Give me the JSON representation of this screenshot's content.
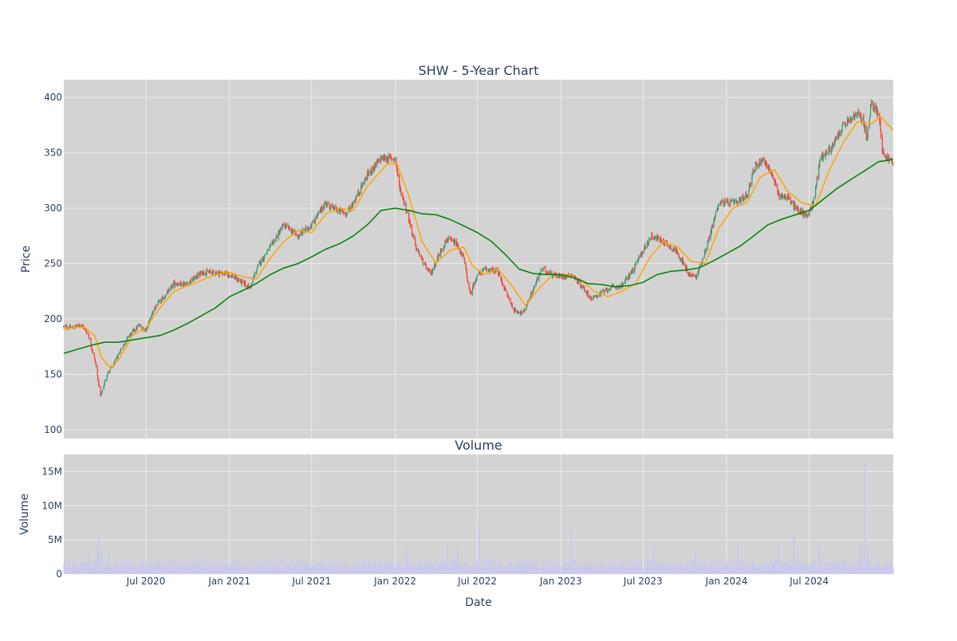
{
  "chart_data": [
    {
      "type": "candlestick",
      "title": "SHW - 5-Year Chart",
      "ylabel": "Price",
      "xlabel": "",
      "ylim": [
        92,
        416
      ],
      "xlim": [
        "2020-01-02",
        "2025-01-02"
      ],
      "x_ticks": [
        "2020-07-01",
        "2021-01-01",
        "2021-07-01",
        "2022-01-01",
        "2022-07-01",
        "2023-01-01",
        "2023-07-01",
        "2024-01-01",
        "2024-07-01"
      ],
      "x_tick_labels": [
        "Jul 2020",
        "Jan 2021",
        "Jul 2021",
        "Jan 2022",
        "Jul 2022",
        "Jan 2023",
        "Jul 2023",
        "Jan 2024",
        "Jul 2024"
      ],
      "y_ticks": [
        100,
        150,
        200,
        250,
        300,
        350,
        400
      ],
      "grid": true,
      "background_color": "#d3d3d3",
      "increasing_color": "#3d9970",
      "decreasing_color": "#ff4136",
      "close_anchors": [
        [
          "2020-01-02",
          193
        ],
        [
          "2020-01-20",
          192
        ],
        [
          "2020-02-10",
          195
        ],
        [
          "2020-02-25",
          186
        ],
        [
          "2020-03-12",
          160
        ],
        [
          "2020-03-23",
          130
        ],
        [
          "2020-04-06",
          150
        ],
        [
          "2020-04-20",
          158
        ],
        [
          "2020-05-06",
          172
        ],
        [
          "2020-05-25",
          185
        ],
        [
          "2020-06-15",
          194
        ],
        [
          "2020-07-01",
          190
        ],
        [
          "2020-07-20",
          210
        ],
        [
          "2020-08-15",
          222
        ],
        [
          "2020-09-01",
          232
        ],
        [
          "2020-10-01",
          232
        ],
        [
          "2020-11-01",
          242
        ],
        [
          "2020-12-01",
          242
        ],
        [
          "2021-01-01",
          240
        ],
        [
          "2021-01-25",
          234
        ],
        [
          "2021-02-15",
          228
        ],
        [
          "2021-03-05",
          248
        ],
        [
          "2021-04-01",
          265
        ],
        [
          "2021-05-01",
          285
        ],
        [
          "2021-06-01",
          275
        ],
        [
          "2021-07-01",
          285
        ],
        [
          "2021-08-01",
          305
        ],
        [
          "2021-08-15",
          300
        ],
        [
          "2021-09-15",
          295
        ],
        [
          "2021-10-01",
          305
        ],
        [
          "2021-11-01",
          330
        ],
        [
          "2021-12-01",
          345
        ],
        [
          "2022-01-01",
          345
        ],
        [
          "2022-01-10",
          320
        ],
        [
          "2022-01-25",
          300
        ],
        [
          "2022-02-15",
          265
        ],
        [
          "2022-03-05",
          250
        ],
        [
          "2022-03-20",
          240
        ],
        [
          "2022-04-05",
          256
        ],
        [
          "2022-04-25",
          272
        ],
        [
          "2022-05-15",
          268
        ],
        [
          "2022-06-01",
          255
        ],
        [
          "2022-06-15",
          222
        ],
        [
          "2022-07-01",
          240
        ],
        [
          "2022-07-20",
          245
        ],
        [
          "2022-08-15",
          243
        ],
        [
          "2022-09-01",
          225
        ],
        [
          "2022-09-20",
          208
        ],
        [
          "2022-10-10",
          205
        ],
        [
          "2022-10-25",
          220
        ],
        [
          "2022-11-20",
          245
        ],
        [
          "2022-12-15",
          240
        ],
        [
          "2023-01-01",
          238
        ],
        [
          "2023-01-25",
          240
        ],
        [
          "2023-02-15",
          230
        ],
        [
          "2023-03-10",
          218
        ],
        [
          "2023-03-25",
          222
        ],
        [
          "2023-04-20",
          228
        ],
        [
          "2023-05-15",
          230
        ],
        [
          "2023-06-10",
          245
        ],
        [
          "2023-07-01",
          262
        ],
        [
          "2023-07-20",
          275
        ],
        [
          "2023-08-15",
          270
        ],
        [
          "2023-09-15",
          260
        ],
        [
          "2023-10-10",
          240
        ],
        [
          "2023-10-27",
          238
        ],
        [
          "2023-11-20",
          268
        ],
        [
          "2023-12-15",
          305
        ],
        [
          "2024-01-01",
          305
        ],
        [
          "2024-01-25",
          305
        ],
        [
          "2024-02-15",
          312
        ],
        [
          "2024-03-01",
          335
        ],
        [
          "2024-03-20",
          345
        ],
        [
          "2024-04-05",
          335
        ],
        [
          "2024-04-25",
          312
        ],
        [
          "2024-05-15",
          310
        ],
        [
          "2024-06-01",
          300
        ],
        [
          "2024-06-25",
          293
        ],
        [
          "2024-07-10",
          305
        ],
        [
          "2024-07-25",
          345
        ],
        [
          "2024-08-20",
          355
        ],
        [
          "2024-09-15",
          375
        ],
        [
          "2024-10-01",
          380
        ],
        [
          "2024-10-15",
          385
        ],
        [
          "2024-10-28",
          380
        ],
        [
          "2024-11-05",
          362
        ],
        [
          "2024-11-15",
          395
        ],
        [
          "2024-12-02",
          385
        ],
        [
          "2024-12-10",
          350
        ],
        [
          "2025-01-02",
          340
        ]
      ],
      "series": [
        {
          "name": "",
          "color": "#ffa500",
          "values": [
            [
              "2020-01-02",
              191
            ],
            [
              "2020-02-15",
              193
            ],
            [
              "2020-03-10",
              185
            ],
            [
              "2020-03-25",
              165
            ],
            [
              "2020-04-15",
              155
            ],
            [
              "2020-05-05",
              165
            ],
            [
              "2020-06-01",
              185
            ],
            [
              "2020-07-01",
              192
            ],
            [
              "2020-08-01",
              210
            ],
            [
              "2020-09-01",
              225
            ],
            [
              "2020-10-01",
              230
            ],
            [
              "2020-11-01",
              235
            ],
            [
              "2020-12-01",
              240
            ],
            [
              "2021-01-01",
              242
            ],
            [
              "2021-02-01",
              238
            ],
            [
              "2021-03-01",
              236
            ],
            [
              "2021-04-01",
              255
            ],
            [
              "2021-05-01",
              270
            ],
            [
              "2021-06-01",
              280
            ],
            [
              "2021-07-01",
              278
            ],
            [
              "2021-08-01",
              295
            ],
            [
              "2021-09-01",
              300
            ],
            [
              "2021-10-01",
              298
            ],
            [
              "2021-11-01",
              320
            ],
            [
              "2021-12-15",
              340
            ],
            [
              "2022-01-05",
              340
            ],
            [
              "2022-02-01",
              310
            ],
            [
              "2022-03-01",
              270
            ],
            [
              "2022-04-01",
              250
            ],
            [
              "2022-05-01",
              262
            ],
            [
              "2022-06-01",
              265
            ],
            [
              "2022-06-20",
              248
            ],
            [
              "2022-07-15",
              240
            ],
            [
              "2022-08-15",
              245
            ],
            [
              "2022-09-15",
              230
            ],
            [
              "2022-10-15",
              212
            ],
            [
              "2022-11-15",
              228
            ],
            [
              "2022-12-15",
              240
            ],
            [
              "2023-01-15",
              240
            ],
            [
              "2023-02-15",
              235
            ],
            [
              "2023-03-15",
              225
            ],
            [
              "2023-04-15",
              220
            ],
            [
              "2023-05-15",
              225
            ],
            [
              "2023-06-15",
              232
            ],
            [
              "2023-07-15",
              255
            ],
            [
              "2023-08-15",
              270
            ],
            [
              "2023-09-15",
              265
            ],
            [
              "2023-10-15",
              252
            ],
            [
              "2023-11-15",
              250
            ],
            [
              "2023-12-15",
              282
            ],
            [
              "2024-01-15",
              300
            ],
            [
              "2024-02-15",
              305
            ],
            [
              "2024-03-15",
              328
            ],
            [
              "2024-04-15",
              335
            ],
            [
              "2024-05-15",
              315
            ],
            [
              "2024-06-15",
              305
            ],
            [
              "2024-07-15",
              302
            ],
            [
              "2024-08-15",
              335
            ],
            [
              "2024-09-15",
              360
            ],
            [
              "2024-10-15",
              378
            ],
            [
              "2024-11-15",
              376
            ],
            [
              "2024-12-05",
              383
            ],
            [
              "2025-01-02",
              370
            ]
          ]
        },
        {
          "name": "",
          "color": "#008000",
          "values": [
            [
              "2020-01-02",
              169
            ],
            [
              "2020-03-01",
              176
            ],
            [
              "2020-04-01",
              179
            ],
            [
              "2020-05-01",
              179
            ],
            [
              "2020-06-01",
              181
            ],
            [
              "2020-07-01",
              183
            ],
            [
              "2020-08-01",
              185
            ],
            [
              "2020-09-01",
              190
            ],
            [
              "2020-10-01",
              196
            ],
            [
              "2020-11-01",
              203
            ],
            [
              "2020-12-01",
              210
            ],
            [
              "2021-01-01",
              220
            ],
            [
              "2021-02-01",
              226
            ],
            [
              "2021-03-01",
              232
            ],
            [
              "2021-04-01",
              240
            ],
            [
              "2021-05-01",
              246
            ],
            [
              "2021-06-01",
              250
            ],
            [
              "2021-07-01",
              256
            ],
            [
              "2021-08-01",
              263
            ],
            [
              "2021-09-01",
              268
            ],
            [
              "2021-10-01",
              275
            ],
            [
              "2021-11-01",
              285
            ],
            [
              "2021-12-01",
              298
            ],
            [
              "2022-01-01",
              300
            ],
            [
              "2022-02-01",
              298
            ],
            [
              "2022-03-01",
              295
            ],
            [
              "2022-04-01",
              294
            ],
            [
              "2022-05-01",
              290
            ],
            [
              "2022-06-01",
              284
            ],
            [
              "2022-07-01",
              278
            ],
            [
              "2022-08-01",
              270
            ],
            [
              "2022-09-01",
              258
            ],
            [
              "2022-10-01",
              245
            ],
            [
              "2022-11-01",
              241
            ],
            [
              "2022-12-01",
              240
            ],
            [
              "2023-01-01",
              240
            ],
            [
              "2023-02-01",
              237
            ],
            [
              "2023-03-01",
              232
            ],
            [
              "2023-04-01",
              231
            ],
            [
              "2023-05-01",
              229
            ],
            [
              "2023-06-01",
              230
            ],
            [
              "2023-07-01",
              233
            ],
            [
              "2023-08-01",
              240
            ],
            [
              "2023-09-01",
              243
            ],
            [
              "2023-10-01",
              244
            ],
            [
              "2023-11-01",
              246
            ],
            [
              "2023-12-01",
              252
            ],
            [
              "2024-01-01",
              259
            ],
            [
              "2024-02-01",
              266
            ],
            [
              "2024-03-01",
              275
            ],
            [
              "2024-04-01",
              285
            ],
            [
              "2024-05-01",
              290
            ],
            [
              "2024-06-01",
              294
            ],
            [
              "2024-07-01",
              298
            ],
            [
              "2024-08-01",
              308
            ],
            [
              "2024-09-01",
              318
            ],
            [
              "2024-10-01",
              326
            ],
            [
              "2024-11-01",
              334
            ],
            [
              "2024-12-01",
              342
            ],
            [
              "2025-01-02",
              344
            ]
          ]
        }
      ]
    },
    {
      "type": "bar",
      "title": "Volume",
      "ylabel": "Volume",
      "xlabel": "Date",
      "ylim": [
        0,
        17500000
      ],
      "y_ticks": [
        0,
        5000000,
        10000000,
        15000000
      ],
      "y_tick_labels": [
        "0",
        "5M",
        "10M",
        "15M"
      ],
      "x_tick_labels": [
        "Jul 2020",
        "Jan 2021",
        "Jul 2021",
        "Jan 2022",
        "Jul 2022",
        "Jan 2023",
        "Jul 2023",
        "Jan 2024",
        "Jul 2024"
      ],
      "bar_color": "#c8c8ee",
      "baseline_volume": 1500000,
      "spikes": [
        [
          "2020-02-28",
          3000000
        ],
        [
          "2020-03-16",
          4500000
        ],
        [
          "2020-03-20",
          5800000
        ],
        [
          "2020-03-25",
          3500000
        ],
        [
          "2020-04-10",
          3200000
        ],
        [
          "2020-10-23",
          2800000
        ],
        [
          "2021-04-27",
          2600000
        ],
        [
          "2021-10-26",
          2500000
        ],
        [
          "2022-01-26",
          3500000
        ],
        [
          "2022-04-26",
          4400000
        ],
        [
          "2022-05-18",
          3500000
        ],
        [
          "2022-07-05",
          7200000
        ],
        [
          "2022-07-26",
          2600000
        ],
        [
          "2023-01-23",
          7400000
        ],
        [
          "2023-07-25",
          4000000
        ],
        [
          "2023-10-24",
          3200000
        ],
        [
          "2024-01-25",
          4200000
        ],
        [
          "2024-04-23",
          4400000
        ],
        [
          "2024-05-28",
          5800000
        ],
        [
          "2024-07-23",
          4000000
        ],
        [
          "2024-10-22",
          4500000
        ],
        [
          "2024-11-01",
          16400000
        ],
        [
          "2024-11-07",
          3800000
        ]
      ]
    }
  ]
}
